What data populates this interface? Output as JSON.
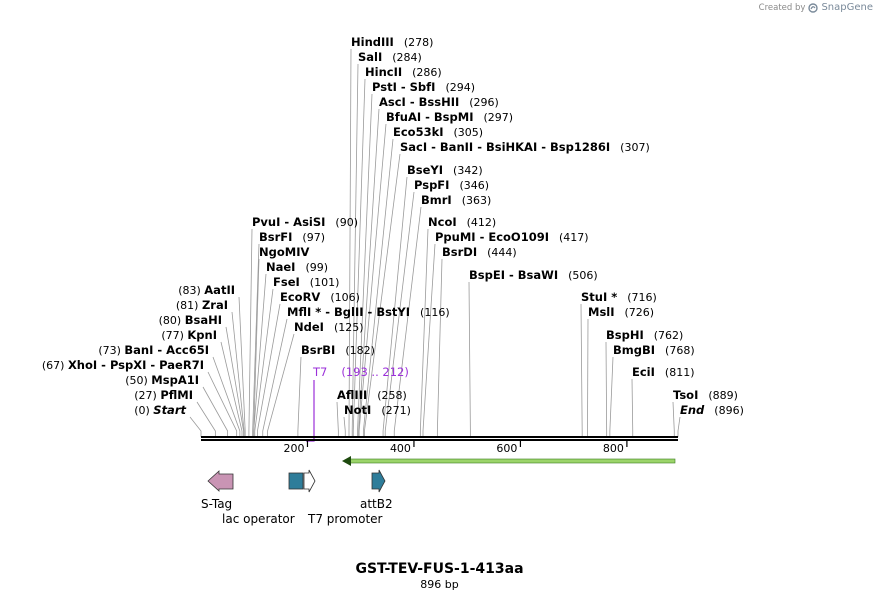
{
  "credit": {
    "text": "Created by",
    "brand": "SnapGene",
    "logo_icon": "snapgene-logo-icon"
  },
  "map": {
    "title": "GST-TEV-FUS-1-413aa",
    "length_label": "896 bp",
    "total_bp": 896,
    "ticks": [
      {
        "label": "200",
        "bp": 200
      },
      {
        "label": "400",
        "bp": 400
      },
      {
        "label": "600",
        "bp": 600
      },
      {
        "label": "800",
        "bp": 800
      }
    ]
  },
  "sites": [
    {
      "text": "HindIII",
      "pos": "(278)",
      "bp": 278
    },
    {
      "text": "SalI",
      "pos": "(284)",
      "bp": 284
    },
    {
      "text": "HincII",
      "pos": "(286)",
      "bp": 286
    },
    {
      "text": "PstI  -  SbfI",
      "pos": "(294)",
      "bp": 294
    },
    {
      "text": "AscI  -  BssHII",
      "pos": "(296)",
      "bp": 296
    },
    {
      "text": "BfuAI  -  BspMI",
      "pos": "(297)",
      "bp": 297
    },
    {
      "text": "Eco53kI",
      "pos": "(305)",
      "bp": 305
    },
    {
      "text": "SacI   -  BanII   -  BsiHKAI   -  Bsp1286I",
      "pos": "(307)",
      "bp": 307
    },
    {
      "text": "BseYI",
      "pos": "(342)",
      "bp": 342
    },
    {
      "text": "PspFI",
      "pos": "(346)",
      "bp": 346
    },
    {
      "text": "BmrI",
      "pos": "(363)",
      "bp": 363
    },
    {
      "text": "NcoI",
      "pos": "(412)",
      "bp": 412
    },
    {
      "text": "PpuMI   -  EcoO109I",
      "pos": "(417)",
      "bp": 417
    },
    {
      "text": "BsrDI",
      "pos": "(444)",
      "bp": 444
    },
    {
      "text": "BspEI  -  BsaWI",
      "pos": "(506)",
      "bp": 506
    },
    {
      "text": "PvuI  -  AsiSI",
      "pos": "(90)",
      "bp": 90
    },
    {
      "text": "BsrFI",
      "pos": "(97)",
      "bp": 97
    },
    {
      "text": "NgoMIV",
      "pos": "",
      "bp": 99
    },
    {
      "text": "NaeI",
      "pos": "(99)",
      "bp": 99
    },
    {
      "text": "FseI",
      "pos": "(101)",
      "bp": 101
    },
    {
      "text": "EcoRV",
      "pos": "(106)",
      "bp": 106
    },
    {
      "text": "MflI *  -  BglII   -  BstYI",
      "pos": "(116)",
      "bp": 116
    },
    {
      "text": "NdeI",
      "pos": "(125)",
      "bp": 125
    },
    {
      "text": "BsrBI",
      "pos": "(182)",
      "bp": 182
    },
    {
      "text": "AflIII",
      "pos": "(258)",
      "bp": 258
    },
    {
      "text": "NotI",
      "pos": "(271)",
      "bp": 271
    },
    {
      "text": "StuI *",
      "pos": "(716)",
      "bp": 716
    },
    {
      "text": "MslI",
      "pos": "(726)",
      "bp": 726
    },
    {
      "text": "BspHI",
      "pos": "(762)",
      "bp": 762
    },
    {
      "text": "BmgBI",
      "pos": "(768)",
      "bp": 768
    },
    {
      "text": "EciI",
      "pos": "(811)",
      "bp": 811
    },
    {
      "text": "TsoI",
      "pos": "(889)",
      "bp": 889
    },
    {
      "text": "End",
      "pos": "(896)",
      "bp": 896,
      "italic": true
    },
    {
      "text": "AatII",
      "pos": "(83)",
      "bp": 83
    },
    {
      "text": "ZraI",
      "pos": "(81)",
      "bp": 81
    },
    {
      "text": "BsaHI",
      "pos": "(80)",
      "bp": 80
    },
    {
      "text": "KpnI",
      "pos": "(77)",
      "bp": 77
    },
    {
      "text": "BanI   -  Acc65I",
      "pos": "(73)",
      "bp": 73
    },
    {
      "text": "XhoI   -  PspXI   -  PaeR7I",
      "pos": "(67)",
      "bp": 67
    },
    {
      "text": "MspA1I",
      "pos": "(50)",
      "bp": 50
    },
    {
      "text": "PflMI",
      "pos": "(27)",
      "bp": 27
    },
    {
      "text": "Start",
      "pos": "(0)",
      "bp": 0,
      "italic": true
    }
  ],
  "primer": {
    "name": "T7",
    "range": "(193 .. 212)",
    "color": "#9b30d9"
  },
  "features": [
    {
      "name": "S-Tag",
      "color": "#c994b4",
      "kind": "arrow-left"
    },
    {
      "name": "lac operator",
      "color": "#2e7d9a",
      "kind": "box"
    },
    {
      "name": "T7 promoter",
      "color": "#ffffff",
      "kind": "arrow-right-outline"
    },
    {
      "name": "attB2",
      "color": "#2e7d9a",
      "kind": "arrow-right"
    },
    {
      "name": "",
      "color": "#9bd46a",
      "kind": "arrow-left-long"
    }
  ]
}
